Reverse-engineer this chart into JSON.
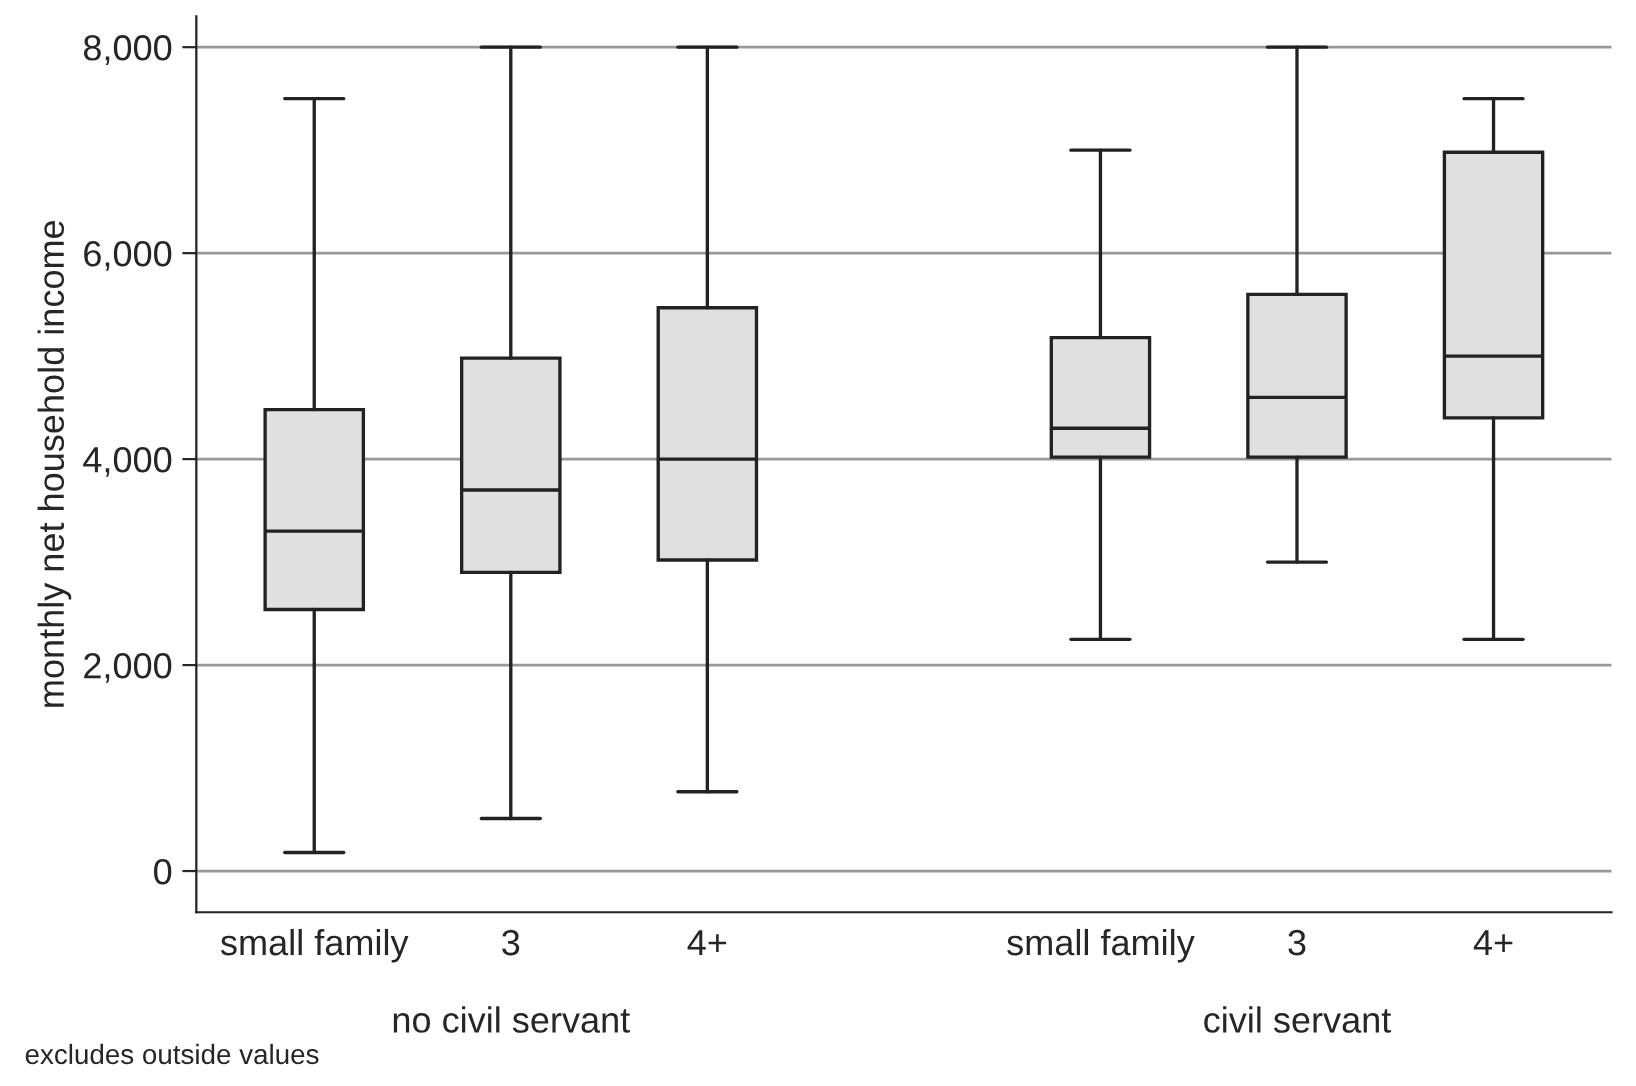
{
  "chart_data": {
    "type": "box",
    "ylabel": "monthly net household income",
    "categories": [
      "small family",
      "3",
      "4+",
      null,
      "small family",
      "3",
      "4+"
    ],
    "boxes": [
      {
        "low": 180,
        "q1": 2540,
        "median": 3300,
        "q3": 4480,
        "high": 7500
      },
      {
        "low": 510,
        "q1": 2900,
        "median": 3700,
        "q3": 4980,
        "high": 8000
      },
      {
        "low": 770,
        "q1": 3020,
        "median": 4000,
        "q3": 5470,
        "high": 8000
      },
      null,
      {
        "low": 2250,
        "q1": 4020,
        "median": 4300,
        "q3": 5180,
        "high": 7000
      },
      {
        "low": 3000,
        "q1": 4020,
        "median": 4600,
        "q3": 5600,
        "high": 8000
      },
      {
        "low": 2250,
        "q1": 4400,
        "median": 5000,
        "q3": 6980,
        "high": 7500
      }
    ],
    "color": "#e0e0e0",
    "ylim": [
      -400,
      8300
    ],
    "yticks": [
      {
        "value": 0,
        "label": "0"
      },
      {
        "value": 2000,
        "label": "2,000"
      },
      {
        "value": 4000,
        "label": "4,000"
      },
      {
        "value": 6000,
        "label": "6,000"
      },
      {
        "value": 8000,
        "label": "8,000"
      }
    ],
    "grid": "y",
    "annotations": [
      "no civil servant",
      "civil servant",
      "excludes outside values"
    ]
  }
}
